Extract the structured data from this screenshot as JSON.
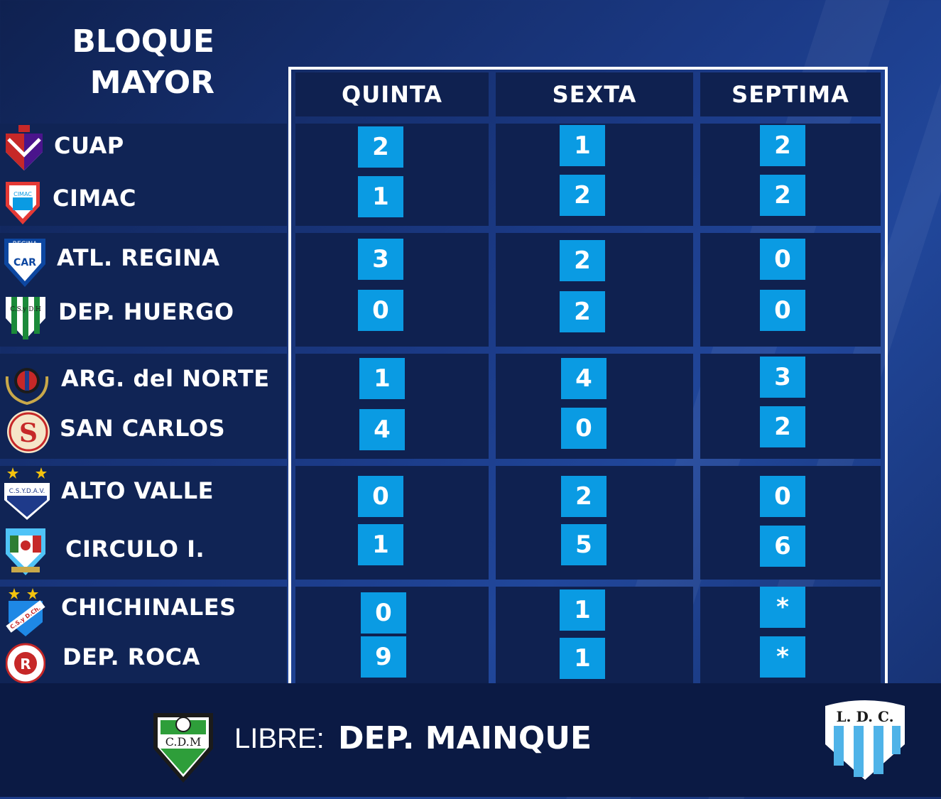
{
  "title": {
    "line1": "BLOQUE",
    "line2": "MAYOR"
  },
  "columns": [
    "QUINTA",
    "SEXTA",
    "SEPTIMA"
  ],
  "matches": [
    {
      "home": "CUAP",
      "away": "CIMAC",
      "quinta": [
        "2",
        "1"
      ],
      "sexta": [
        "1",
        "2"
      ],
      "septima": [
        "2",
        "2"
      ]
    },
    {
      "home": "ATL. REGINA",
      "away": "DEP. HUERGO",
      "quinta": [
        "3",
        "0"
      ],
      "sexta": [
        "2",
        "2"
      ],
      "septima": [
        "0",
        "0"
      ]
    },
    {
      "home": "ARG. del NORTE",
      "away": "SAN CARLOS",
      "quinta": [
        "1",
        "4"
      ],
      "sexta": [
        "4",
        "0"
      ],
      "septima": [
        "3",
        "2"
      ]
    },
    {
      "home": "ALTO VALLE",
      "away": "CIRCULO I.",
      "quinta": [
        "0",
        "1"
      ],
      "sexta": [
        "2",
        "5"
      ],
      "septima": [
        "0",
        "6"
      ]
    },
    {
      "home": "CHICHINALES",
      "away": "DEP. ROCA",
      "quinta": [
        "0",
        "9"
      ],
      "sexta": [
        "1",
        "1"
      ],
      "septima": [
        "*",
        "*"
      ]
    }
  ],
  "crest_text": {
    "cimac": "CIMAC",
    "regina": "REGINA",
    "regina_initials": "CAR",
    "huergo": "C.S.y D.H",
    "alto_valle": "C.S.Y.D.A.V.",
    "chichinales": "C.S.y D.Ch.",
    "mainque": "C.D.M",
    "ldc": "L. D. C."
  },
  "footer": {
    "libre_label": "LIBRE:",
    "libre_team": "DEP. MAINQUE"
  },
  "colors": {
    "background": "#1b3a86",
    "panel": "#0f2150",
    "score_box": "#0a9be3",
    "frame": "#ffffff"
  }
}
